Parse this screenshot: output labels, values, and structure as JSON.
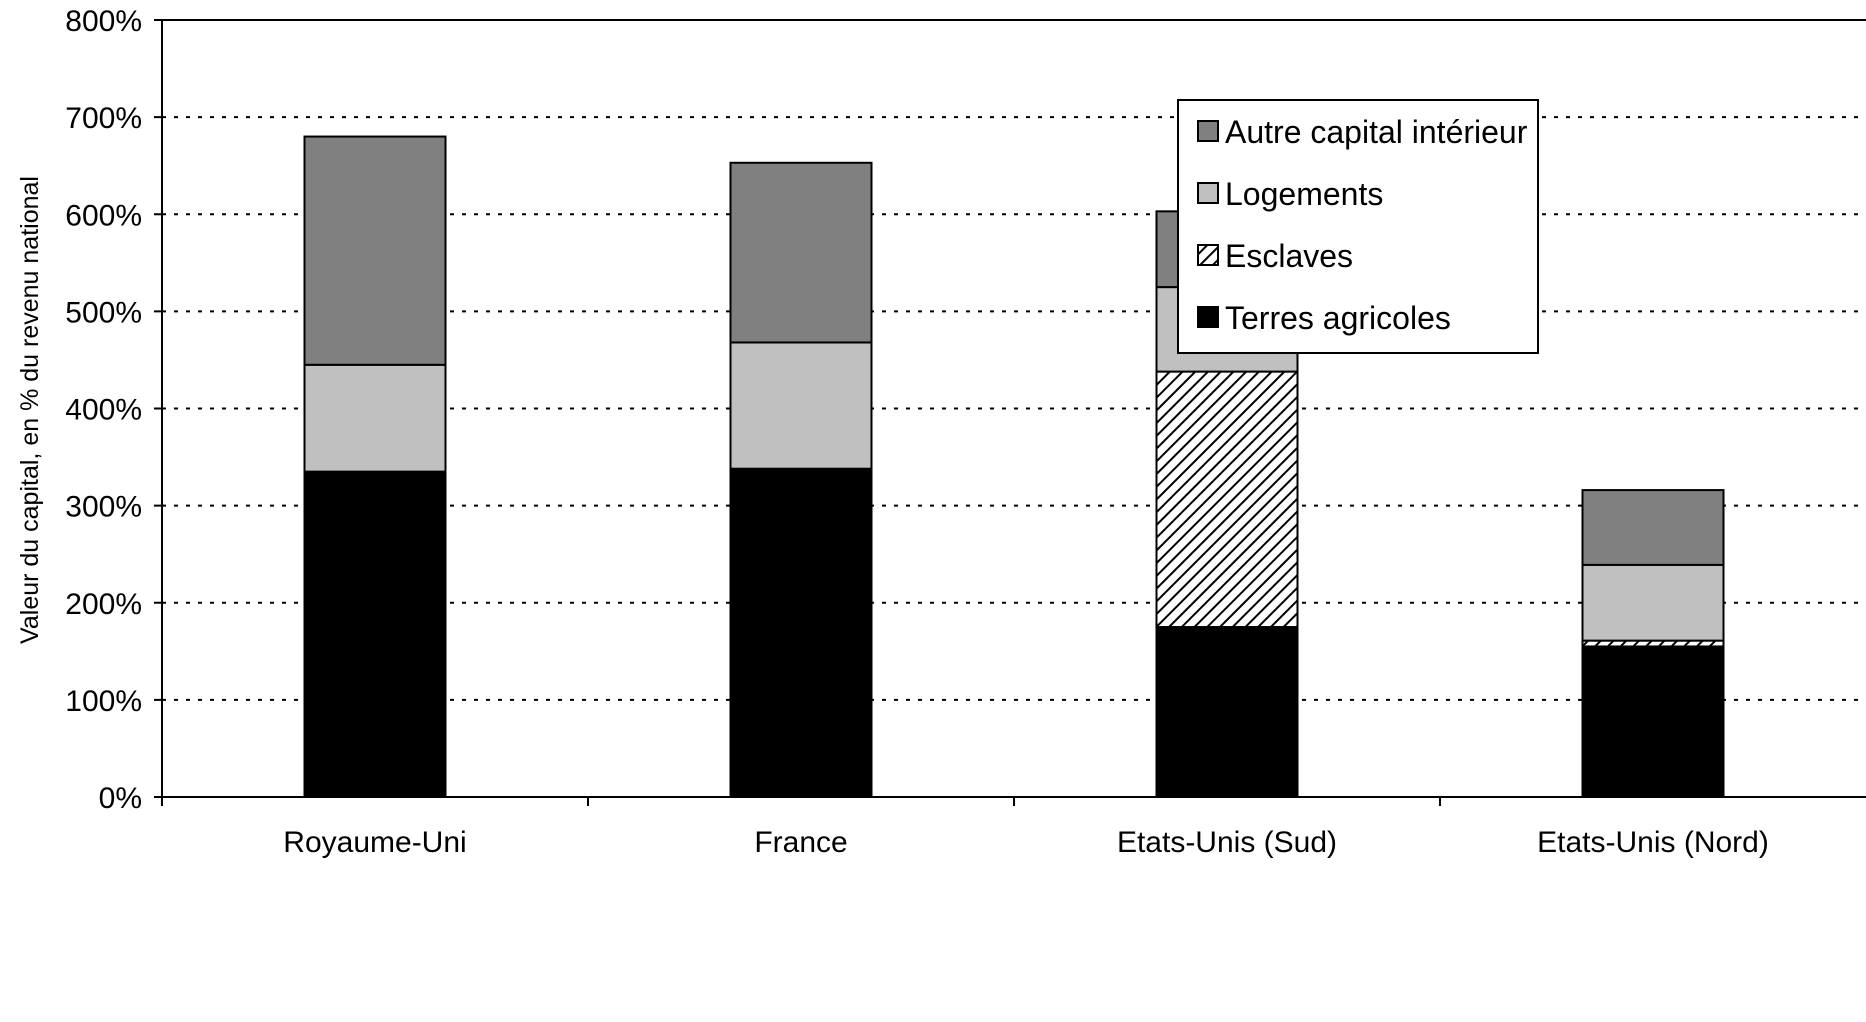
{
  "chart_data": {
    "type": "bar",
    "stacked": true,
    "title": "",
    "xlabel": "",
    "ylabel": "Valeur du capital, en % du revenu national",
    "ylim": [
      0,
      800
    ],
    "yticks": [
      0,
      100,
      200,
      300,
      400,
      500,
      600,
      700,
      800
    ],
    "ytick_labels": [
      "0%",
      "100%",
      "200%",
      "300%",
      "400%",
      "500%",
      "600%",
      "700%",
      "800%"
    ],
    "grid": "horizontal dotted",
    "legend_position": "top-right",
    "categories": [
      "Royaume-Uni",
      "France",
      "Etats-Unis (Sud)",
      "Etats-Unis (Nord)"
    ],
    "series": [
      {
        "name": "Terres agricoles",
        "values": [
          335,
          338,
          175,
          155
        ],
        "color": "#000000",
        "pattern": "solid"
      },
      {
        "name": "Esclaves",
        "values": [
          0,
          0,
          263,
          6
        ],
        "color": "#ffffff",
        "pattern": "hatch"
      },
      {
        "name": "Logements",
        "values": [
          110,
          130,
          87,
          78
        ],
        "color": "#c0c0c0",
        "pattern": "solid"
      },
      {
        "name": "Autre capital intérieur",
        "values": [
          235,
          185,
          78,
          77
        ],
        "color": "#808080",
        "pattern": "solid"
      }
    ],
    "legend_order": [
      "Autre capital intérieur",
      "Logements",
      "Esclaves",
      "Terres agricoles"
    ]
  }
}
